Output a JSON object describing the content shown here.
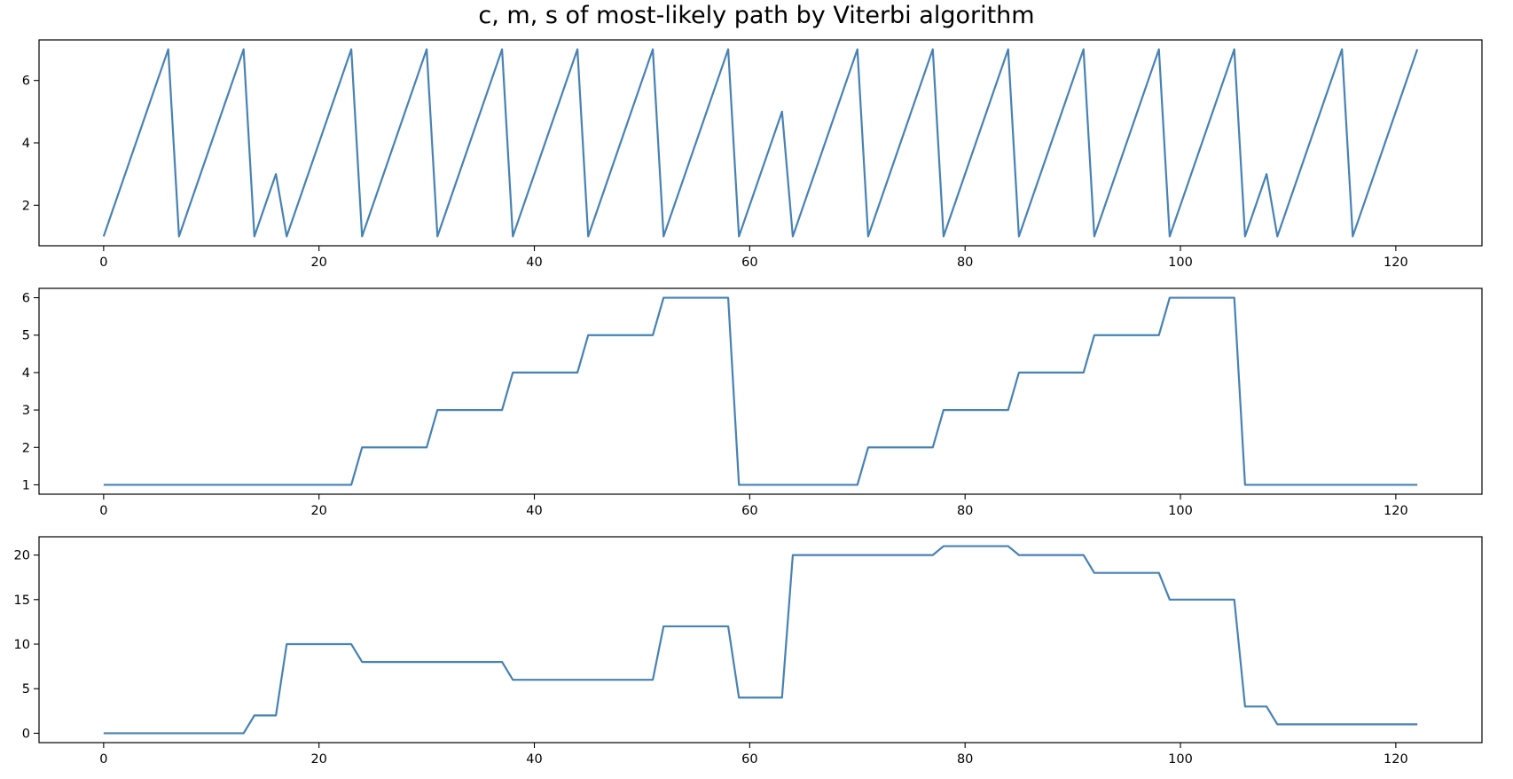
{
  "figure": {
    "title": "c, m, s of most-likely path by Viterbi algorithm",
    "line_color": "#4682b4"
  },
  "chart_data": [
    {
      "type": "line",
      "title": "",
      "xlabel": "",
      "ylabel": "",
      "grid": false,
      "xlim": [
        -6,
        128
      ],
      "ylim": [
        0.7,
        7.3
      ],
      "xticks": [
        0,
        20,
        40,
        60,
        80,
        100,
        120
      ],
      "yticks": [
        2,
        4,
        6
      ],
      "x": [
        0,
        6,
        7,
        13,
        14,
        16,
        17,
        23,
        24,
        30,
        31,
        37,
        38,
        44,
        45,
        51,
        52,
        58,
        59,
        63,
        64,
        70,
        71,
        77,
        78,
        84,
        85,
        91,
        92,
        98,
        99,
        105,
        106,
        108,
        109,
        115,
        116,
        122
      ],
      "y": [
        1,
        7,
        1,
        7,
        1,
        3,
        1,
        7,
        1,
        7,
        1,
        7,
        1,
        7,
        1,
        7,
        1,
        7,
        1,
        5,
        1,
        7,
        1,
        7,
        1,
        7,
        1,
        7,
        1,
        7,
        1,
        7,
        1,
        3,
        1,
        7,
        1,
        7
      ]
    },
    {
      "type": "line",
      "title": "",
      "xlabel": "",
      "ylabel": "",
      "grid": false,
      "xlim": [
        -6,
        128
      ],
      "ylim": [
        0.75,
        6.25
      ],
      "xticks": [
        0,
        20,
        40,
        60,
        80,
        100,
        120
      ],
      "yticks": [
        1,
        2,
        3,
        4,
        5,
        6
      ],
      "x": [
        0,
        23,
        24,
        30,
        31,
        37,
        38,
        44,
        45,
        51,
        52,
        58,
        59,
        70,
        71,
        77,
        78,
        84,
        85,
        91,
        92,
        98,
        99,
        105,
        106,
        122
      ],
      "y": [
        1,
        1,
        2,
        2,
        3,
        3,
        4,
        4,
        5,
        5,
        6,
        6,
        1,
        1,
        2,
        2,
        3,
        3,
        4,
        4,
        5,
        5,
        6,
        6,
        1,
        1
      ]
    },
    {
      "type": "line",
      "title": "",
      "xlabel": "",
      "ylabel": "",
      "grid": false,
      "xlim": [
        -6,
        128
      ],
      "ylim": [
        -1.05,
        22.05
      ],
      "xticks": [
        0,
        20,
        40,
        60,
        80,
        100,
        120
      ],
      "yticks": [
        0,
        5,
        10,
        15,
        20
      ],
      "x": [
        0,
        13,
        14,
        16,
        17,
        23,
        24,
        37,
        38,
        51,
        52,
        58,
        59,
        63,
        64,
        77,
        78,
        84,
        85,
        91,
        92,
        98,
        99,
        105,
        106,
        108,
        109,
        122
      ],
      "y": [
        0,
        0,
        2,
        2,
        10,
        10,
        8,
        8,
        6,
        6,
        12,
        12,
        4,
        4,
        20,
        20,
        21,
        21,
        20,
        20,
        18,
        18,
        15,
        15,
        3,
        3,
        1,
        1
      ]
    }
  ]
}
